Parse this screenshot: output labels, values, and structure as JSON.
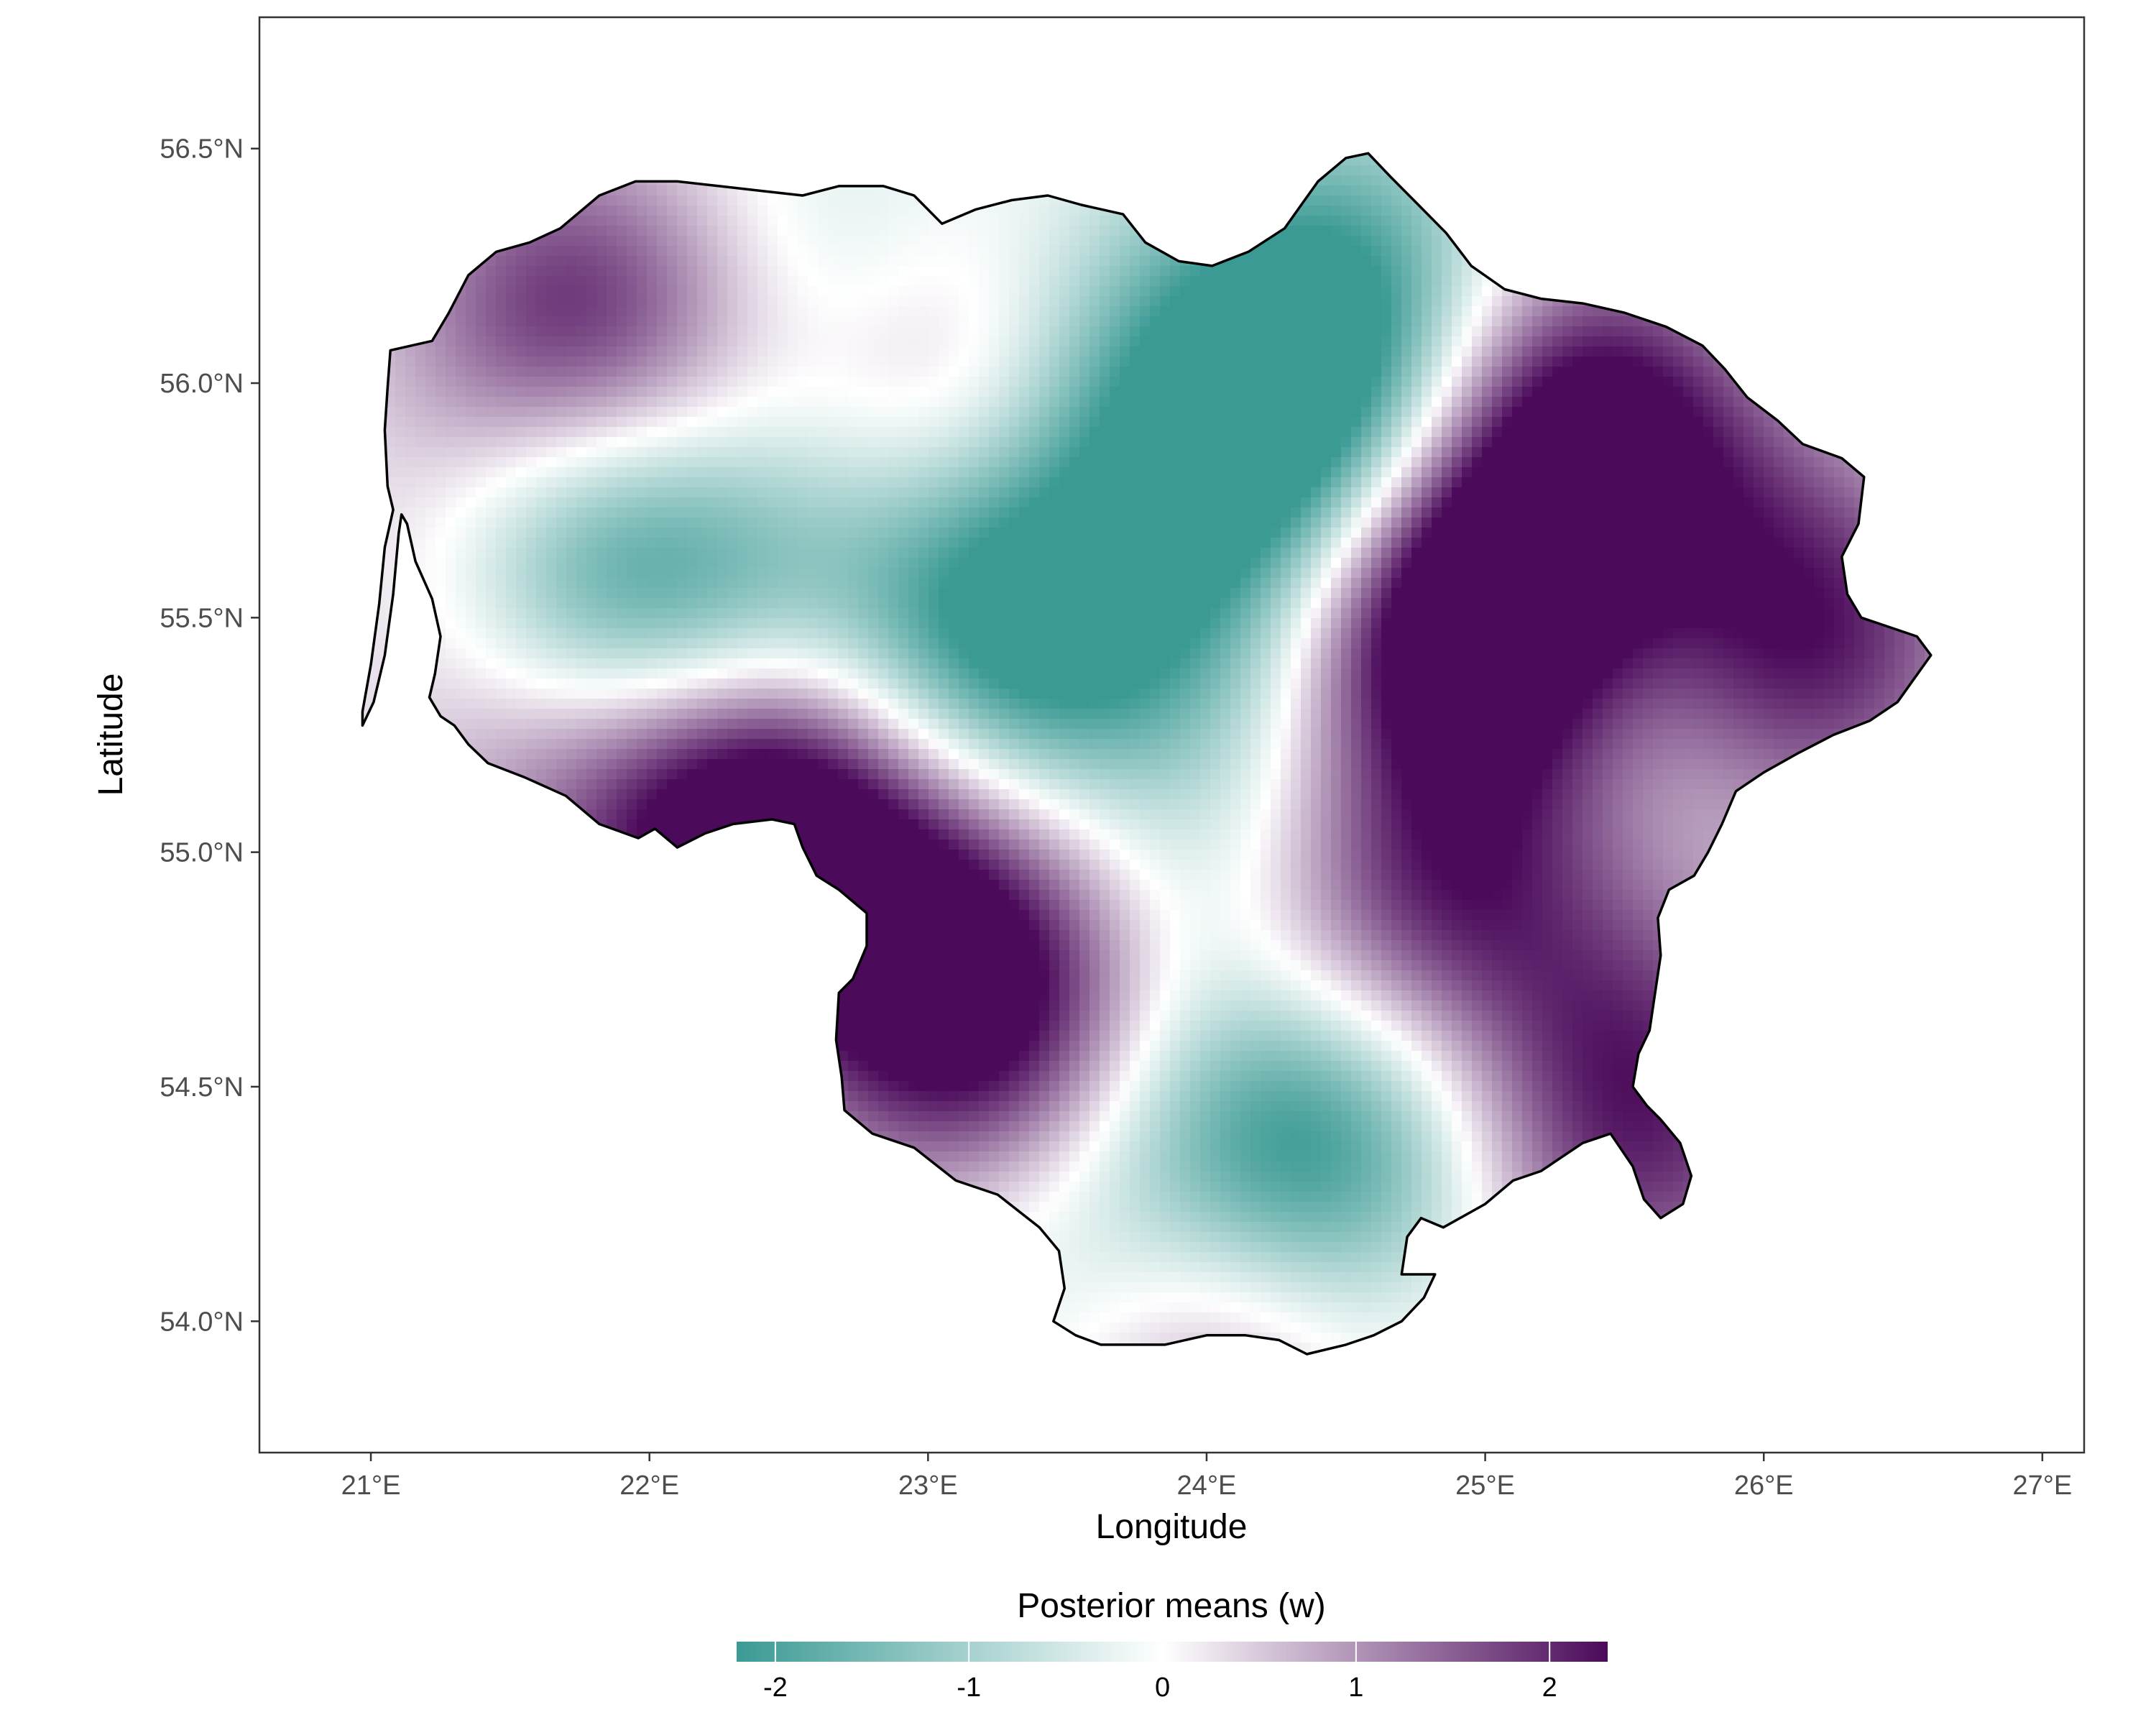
{
  "chart_data": {
    "type": "heatmap",
    "subtype": "choropleth-raster-map",
    "title": "",
    "xlabel": "Longitude",
    "ylabel": "Latitude",
    "xlim": [
      20.6,
      27.15
    ],
    "ylim": [
      53.72,
      56.78
    ],
    "x_ticks": [
      {
        "value": 21,
        "label": "21°E"
      },
      {
        "value": 22,
        "label": "22°E"
      },
      {
        "value": 23,
        "label": "23°E"
      },
      {
        "value": 24,
        "label": "24°E"
      },
      {
        "value": 25,
        "label": "25°E"
      },
      {
        "value": 26,
        "label": "26°E"
      },
      {
        "value": 27,
        "label": "27°E"
      }
    ],
    "y_ticks": [
      {
        "value": 54.0,
        "label": "54.0°N"
      },
      {
        "value": 54.5,
        "label": "54.5°N"
      },
      {
        "value": 55.0,
        "label": "55.0°N"
      },
      {
        "value": 55.5,
        "label": "55.5°N"
      },
      {
        "value": 56.0,
        "label": "56.0°N"
      },
      {
        "value": 56.5,
        "label": "56.5°N"
      }
    ],
    "grid": false,
    "legend": {
      "title": "Posterior means (w)",
      "position": "bottom",
      "range": [
        -2.2,
        2.3
      ],
      "ticks": [
        {
          "value": -2,
          "label": "-2"
        },
        {
          "value": -1,
          "label": "-1"
        },
        {
          "value": 0,
          "label": "0"
        },
        {
          "value": 1,
          "label": "1"
        },
        {
          "value": 2,
          "label": "2"
        }
      ],
      "colors": {
        "low": "#3b9a94",
        "mid": "#ffffff",
        "high": "#4b0a5a"
      }
    },
    "boundary": [
      [
        20.97,
        55.27
      ],
      [
        21.01,
        55.32
      ],
      [
        21.05,
        55.42
      ],
      [
        21.08,
        55.55
      ],
      [
        21.1,
        55.68
      ],
      [
        21.11,
        55.72
      ],
      [
        21.13,
        55.7
      ],
      [
        21.16,
        55.62
      ],
      [
        21.22,
        55.54
      ],
      [
        21.25,
        55.46
      ],
      [
        21.23,
        55.38
      ],
      [
        21.21,
        55.33
      ],
      [
        21.25,
        55.29
      ],
      [
        21.3,
        55.27
      ],
      [
        21.35,
        55.23
      ],
      [
        21.42,
        55.19
      ],
      [
        21.55,
        55.16
      ],
      [
        21.7,
        55.12
      ],
      [
        21.82,
        55.06
      ],
      [
        21.96,
        55.03
      ],
      [
        22.02,
        55.05
      ],
      [
        22.1,
        55.01
      ],
      [
        22.2,
        55.04
      ],
      [
        22.3,
        55.06
      ],
      [
        22.44,
        55.07
      ],
      [
        22.52,
        55.06
      ],
      [
        22.55,
        55.01
      ],
      [
        22.6,
        54.95
      ],
      [
        22.68,
        54.92
      ],
      [
        22.78,
        54.87
      ],
      [
        22.78,
        54.8
      ],
      [
        22.73,
        54.73
      ],
      [
        22.68,
        54.7
      ],
      [
        22.67,
        54.6
      ],
      [
        22.69,
        54.52
      ],
      [
        22.7,
        54.45
      ],
      [
        22.8,
        54.4
      ],
      [
        22.95,
        54.37
      ],
      [
        23.1,
        54.3
      ],
      [
        23.25,
        54.27
      ],
      [
        23.4,
        54.2
      ],
      [
        23.47,
        54.15
      ],
      [
        23.49,
        54.07
      ],
      [
        23.45,
        54.0
      ],
      [
        23.53,
        53.97
      ],
      [
        23.62,
        53.95
      ],
      [
        23.75,
        53.95
      ],
      [
        23.85,
        53.95
      ],
      [
        24.0,
        53.97
      ],
      [
        24.14,
        53.97
      ],
      [
        24.26,
        53.96
      ],
      [
        24.36,
        53.93
      ],
      [
        24.5,
        53.95
      ],
      [
        24.6,
        53.97
      ],
      [
        24.7,
        54.0
      ],
      [
        24.78,
        54.05
      ],
      [
        24.82,
        54.1
      ],
      [
        24.7,
        54.1
      ],
      [
        24.72,
        54.18
      ],
      [
        24.77,
        54.22
      ],
      [
        24.85,
        54.2
      ],
      [
        25.0,
        54.25
      ],
      [
        25.1,
        54.3
      ],
      [
        25.2,
        54.32
      ],
      [
        25.35,
        54.38
      ],
      [
        25.45,
        54.4
      ],
      [
        25.53,
        54.33
      ],
      [
        25.57,
        54.26
      ],
      [
        25.63,
        54.22
      ],
      [
        25.71,
        54.25
      ],
      [
        25.74,
        54.31
      ],
      [
        25.7,
        54.38
      ],
      [
        25.63,
        54.43
      ],
      [
        25.58,
        54.46
      ],
      [
        25.53,
        54.5
      ],
      [
        25.55,
        54.57
      ],
      [
        25.59,
        54.62
      ],
      [
        25.61,
        54.7
      ],
      [
        25.63,
        54.78
      ],
      [
        25.62,
        54.86
      ],
      [
        25.66,
        54.92
      ],
      [
        25.75,
        54.95
      ],
      [
        25.8,
        55.0
      ],
      [
        25.85,
        55.06
      ],
      [
        25.9,
        55.13
      ],
      [
        26.0,
        55.17
      ],
      [
        26.12,
        55.21
      ],
      [
        26.25,
        55.25
      ],
      [
        26.38,
        55.28
      ],
      [
        26.48,
        55.32
      ],
      [
        26.54,
        55.37
      ],
      [
        26.6,
        55.42
      ],
      [
        26.55,
        55.46
      ],
      [
        26.45,
        55.48
      ],
      [
        26.35,
        55.5
      ],
      [
        26.3,
        55.55
      ],
      [
        26.28,
        55.63
      ],
      [
        26.34,
        55.7
      ],
      [
        26.36,
        55.8
      ],
      [
        26.28,
        55.84
      ],
      [
        26.14,
        55.87
      ],
      [
        26.05,
        55.92
      ],
      [
        25.94,
        55.97
      ],
      [
        25.86,
        56.03
      ],
      [
        25.78,
        56.08
      ],
      [
        25.65,
        56.12
      ],
      [
        25.5,
        56.15
      ],
      [
        25.35,
        56.17
      ],
      [
        25.2,
        56.18
      ],
      [
        25.07,
        56.2
      ],
      [
        24.95,
        56.25
      ],
      [
        24.86,
        56.32
      ],
      [
        24.76,
        56.38
      ],
      [
        24.66,
        56.44
      ],
      [
        24.58,
        56.49
      ],
      [
        24.5,
        56.48
      ],
      [
        24.4,
        56.43
      ],
      [
        24.34,
        56.38
      ],
      [
        24.28,
        56.33
      ],
      [
        24.15,
        56.28
      ],
      [
        24.02,
        56.25
      ],
      [
        23.9,
        56.26
      ],
      [
        23.78,
        56.3
      ],
      [
        23.7,
        56.36
      ],
      [
        23.55,
        56.38
      ],
      [
        23.43,
        56.4
      ],
      [
        23.3,
        56.39
      ],
      [
        23.17,
        56.37
      ],
      [
        23.05,
        56.34
      ],
      [
        22.95,
        56.4
      ],
      [
        22.84,
        56.42
      ],
      [
        22.68,
        56.42
      ],
      [
        22.55,
        56.4
      ],
      [
        22.4,
        56.41
      ],
      [
        22.25,
        56.42
      ],
      [
        22.1,
        56.43
      ],
      [
        21.95,
        56.43
      ],
      [
        21.82,
        56.4
      ],
      [
        21.68,
        56.33
      ],
      [
        21.57,
        56.3
      ],
      [
        21.45,
        56.28
      ],
      [
        21.35,
        56.23
      ],
      [
        21.28,
        56.15
      ],
      [
        21.22,
        56.09
      ],
      [
        21.07,
        56.07
      ],
      [
        21.06,
        55.99
      ],
      [
        21.05,
        55.9
      ],
      [
        21.06,
        55.78
      ],
      [
        21.08,
        55.73
      ],
      [
        21.05,
        55.65
      ],
      [
        21.03,
        55.53
      ],
      [
        21.0,
        55.4
      ],
      [
        20.97,
        55.3
      ]
    ],
    "field": {
      "sigma_base": 0.27,
      "centers": [
        [
          21.65,
          56.15,
          1.4
        ],
        [
          21.95,
          56.08,
          0.9
        ],
        [
          21.35,
          55.7,
          0.6
        ],
        [
          21.7,
          55.7,
          -1.1
        ],
        [
          21.85,
          55.5,
          -1.2
        ],
        [
          22.25,
          55.55,
          -1.1
        ],
        [
          21.5,
          55.3,
          0.6
        ],
        [
          21.9,
          55.15,
          1.0
        ],
        [
          22.5,
          55.1,
          2.2
        ],
        [
          22.85,
          55.95,
          0.6
        ],
        [
          23.15,
          56.0,
          1.3
        ],
        [
          22.7,
          56.2,
          -0.9
        ],
        [
          22.95,
          55.75,
          -0.8
        ],
        [
          23.2,
          55.4,
          -1.2
        ],
        [
          23.45,
          55.45,
          -1.6
        ],
        [
          23.7,
          55.75,
          -1.0
        ],
        [
          24.2,
          55.75,
          -1.5
        ],
        [
          24.45,
          55.9,
          -1.2
        ],
        [
          24.55,
          56.25,
          -1.3
        ],
        [
          24.3,
          56.05,
          -0.9
        ],
        [
          23.65,
          56.05,
          -1.0
        ],
        [
          23.75,
          55.72,
          0.5
        ],
        [
          23.8,
          55.25,
          0.4
        ],
        [
          24.15,
          55.35,
          -0.9
        ],
        [
          23.9,
          54.9,
          -1.0
        ],
        [
          23.3,
          54.95,
          1.0
        ],
        [
          23.1,
          54.65,
          1.5
        ],
        [
          23.45,
          54.55,
          1.1
        ],
        [
          22.9,
          54.75,
          0.6
        ],
        [
          23.75,
          54.3,
          -1.1
        ],
        [
          24.3,
          54.35,
          -1.7
        ],
        [
          24.55,
          54.6,
          -0.8
        ],
        [
          23.95,
          54.05,
          2.0
        ],
        [
          23.65,
          54.1,
          -0.9
        ],
        [
          24.5,
          54.75,
          1.6
        ],
        [
          24.8,
          55.55,
          1.5
        ],
        [
          24.9,
          55.6,
          1.3
        ],
        [
          25.1,
          55.35,
          1.2
        ],
        [
          24.95,
          54.95,
          1.3
        ],
        [
          25.45,
          55.8,
          2.1
        ],
        [
          25.25,
          56.0,
          1.2
        ],
        [
          26.05,
          55.55,
          1.5
        ],
        [
          25.95,
          55.35,
          1.0
        ],
        [
          25.65,
          55.55,
          -1.2
        ],
        [
          25.6,
          55.2,
          -0.7
        ],
        [
          25.65,
          54.7,
          0.7
        ],
        [
          25.5,
          54.4,
          1.0
        ],
        [
          25.65,
          54.27,
          0.6
        ],
        [
          25.2,
          54.55,
          0.5
        ],
        [
          24.55,
          55.5,
          0.6
        ],
        [
          24.55,
          54.4,
          -0.8
        ],
        [
          24.8,
          55.8,
          -0.3
        ],
        [
          26.35,
          55.4,
          0.6
        ],
        [
          22.35,
          54.98,
          0.9
        ]
      ]
    }
  }
}
